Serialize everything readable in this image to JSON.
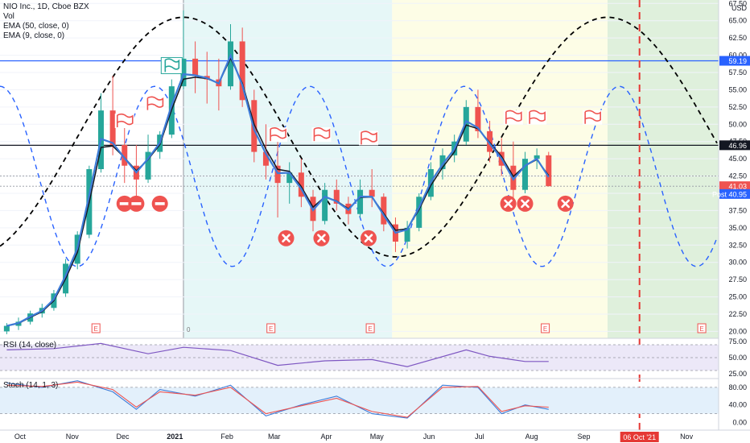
{
  "legend": {
    "symbol_line": "NIO Inc., 1D, Cboe BZX",
    "vol_line": "Vol",
    "ema50_line": "EMA (50, close, 0)",
    "ema9_line": "EMA (9, close, 0)",
    "rsi_line": "RSI (14, close)",
    "stoch_line": "Stoch (14, 1, 3)"
  },
  "currency": "USD",
  "colors": {
    "up": "#26a69a",
    "down": "#ef5350",
    "ema9": "#3d7bd8",
    "ema50": "#131722",
    "cycle_long": "#000000",
    "cycle_short": "#2962ff",
    "zone_blue": "#e6f7f7",
    "zone_yellow": "#fdfde6",
    "zone_green": "#dff0dc",
    "event_line": "#e53935",
    "rsi_band": "#ece8f8",
    "stoch_band": "#e3f0fb"
  },
  "price_axis": {
    "ticks": [
      "67.50",
      "65.00",
      "62.50",
      "60.00",
      "57.50",
      "55.00",
      "52.50",
      "50.00",
      "47.50",
      "45.00",
      "42.50",
      "40.00",
      "37.50",
      "35.00",
      "32.50",
      "30.00",
      "27.50",
      "25.00",
      "22.50",
      "20.00"
    ],
    "labels": [
      {
        "text": "59.19",
        "price": 59.19,
        "color": "#2962ff"
      },
      {
        "text": "46.96",
        "price": 46.96,
        "color": "#131722"
      },
      {
        "text": "41.03",
        "price": 41.03,
        "color": "#ef5350"
      },
      {
        "text": "Post 40.95",
        "price": 40.95,
        "color": "#2962ff"
      }
    ]
  },
  "rsi_axis": {
    "ticks": [
      "75.00",
      "50.00",
      "25.00"
    ]
  },
  "stoch_axis": {
    "ticks": [
      "80.00",
      "40.00",
      "0.00"
    ]
  },
  "time_axis": {
    "labels": [
      "Oct",
      "Nov",
      "Dec",
      "2021",
      "Feb",
      "Mar",
      "Apr",
      "May",
      "Jun",
      "Jul",
      "Aug",
      "Sep",
      "Oct",
      "Nov"
    ],
    "event_label": "06 Oct '21"
  },
  "chart_data": [
    {
      "type": "candlestick",
      "title": "NIO Inc., 1D, Cboe BZX",
      "ylabel": "USD",
      "ylim": [
        19,
        68
      ],
      "x_range": [
        "2020-09-21",
        "2021-11-22"
      ],
      "horizontal_levels": [
        59.19,
        46.96,
        42.5,
        41.03
      ],
      "last_price": 41.03,
      "post_market_price": 40.95,
      "ema_periods": [
        9,
        50
      ],
      "ohlc": [
        [
          "2020-09-25",
          20.0,
          21.2,
          19.6,
          20.8
        ],
        [
          "2020-10-02",
          20.8,
          22.0,
          20.2,
          21.4
        ],
        [
          "2020-10-09",
          21.4,
          23.0,
          21.0,
          22.6
        ],
        [
          "2020-10-16",
          22.6,
          24.0,
          22.0,
          23.4
        ],
        [
          "2020-10-23",
          23.4,
          26.0,
          23.0,
          25.5
        ],
        [
          "2020-10-30",
          25.5,
          30.5,
          25.0,
          29.8
        ],
        [
          "2020-11-06",
          29.8,
          34.5,
          29.0,
          34.0
        ],
        [
          "2020-11-13",
          34.0,
          44.0,
          33.5,
          43.5
        ],
        [
          "2020-11-20",
          43.5,
          54.5,
          43.0,
          52.0
        ],
        [
          "2020-11-27",
          52.0,
          57.0,
          45.5,
          47.0
        ],
        [
          "2020-12-04",
          47.0,
          51.0,
          41.5,
          44.0
        ],
        [
          "2020-12-11",
          44.0,
          47.0,
          39.5,
          42.0
        ],
        [
          "2020-12-18",
          42.0,
          48.5,
          41.5,
          46.0
        ],
        [
          "2020-12-25",
          46.0,
          49.0,
          45.0,
          48.5
        ],
        [
          "2021-01-01",
          48.5,
          56.5,
          48.0,
          55.5
        ],
        [
          "2021-01-08",
          55.5,
          66.5,
          55.0,
          59.5
        ],
        [
          "2021-01-15",
          59.5,
          62.0,
          54.5,
          57.0
        ],
        [
          "2021-01-22",
          57.0,
          60.5,
          53.0,
          56.5
        ],
        [
          "2021-01-29",
          56.5,
          59.5,
          52.0,
          55.5
        ],
        [
          "2021-02-05",
          55.5,
          64.5,
          55.0,
          62.0
        ],
        [
          "2021-02-12",
          62.0,
          64.0,
          52.5,
          53.5
        ],
        [
          "2021-02-19",
          53.5,
          55.0,
          44.5,
          46.0
        ],
        [
          "2021-02-26",
          46.0,
          50.0,
          42.0,
          44.0
        ],
        [
          "2021-03-05",
          44.0,
          49.5,
          36.5,
          41.5
        ],
        [
          "2021-03-12",
          41.5,
          44.5,
          38.5,
          43.0
        ],
        [
          "2021-03-19",
          43.0,
          45.0,
          38.0,
          39.5
        ],
        [
          "2021-03-26",
          39.5,
          40.5,
          34.5,
          36.0
        ],
        [
          "2021-04-02",
          36.0,
          41.5,
          35.5,
          40.5
        ],
        [
          "2021-04-09",
          40.5,
          42.0,
          37.5,
          38.5
        ],
        [
          "2021-04-16",
          38.5,
          39.5,
          35.5,
          37.0
        ],
        [
          "2021-04-23",
          37.0,
          42.0,
          36.5,
          40.5
        ],
        [
          "2021-04-30",
          40.5,
          43.5,
          38.0,
          39.5
        ],
        [
          "2021-05-07",
          39.5,
          40.0,
          34.5,
          35.5
        ],
        [
          "2021-05-14",
          35.5,
          36.5,
          31.5,
          33.0
        ],
        [
          "2021-05-21",
          33.0,
          36.0,
          32.0,
          35.0
        ],
        [
          "2021-05-28",
          35.0,
          40.0,
          34.5,
          39.5
        ],
        [
          "2021-06-04",
          39.5,
          44.5,
          39.0,
          43.5
        ],
        [
          "2021-06-11",
          43.5,
          46.5,
          42.0,
          45.5
        ],
        [
          "2021-06-18",
          45.5,
          48.5,
          44.5,
          47.5
        ],
        [
          "2021-06-25",
          47.5,
          53.5,
          47.0,
          52.5
        ],
        [
          "2021-07-02",
          52.5,
          55.0,
          48.0,
          49.0
        ],
        [
          "2021-07-09",
          49.0,
          50.5,
          44.5,
          46.0
        ],
        [
          "2021-07-16",
          46.0,
          48.0,
          42.5,
          44.0
        ],
        [
          "2021-07-23",
          44.0,
          47.5,
          39.0,
          40.5
        ],
        [
          "2021-07-30",
          40.5,
          46.0,
          40.0,
          45.0
        ],
        [
          "2021-08-06",
          45.0,
          46.5,
          43.5,
          45.5
        ],
        [
          "2021-08-13",
          45.5,
          46.0,
          41.0,
          41.03
        ]
      ],
      "cycle_long": {
        "amplitude_range": [
          30.8,
          65.5
        ],
        "peaks": [
          "2021-01-08",
          "2021-09-17"
        ],
        "troughs": [
          "2020-09-21",
          "2021-05-12"
        ]
      },
      "cycle_short": {
        "amplitude_range": [
          29.4,
          55.5
        ],
        "peaks": [
          "2020-09-21",
          "2020-12-22",
          "2021-03-31",
          "2021-07-02",
          "2021-10-06"
        ],
        "troughs": [
          "2020-11-05",
          "2021-02-14",
          "2021-05-14",
          "2021-08-20",
          "2021-11-22"
        ]
      },
      "zones": [
        {
          "name": "blue",
          "from": "2021-01-08",
          "to": "2021-05-12"
        },
        {
          "name": "yellow",
          "from": "2021-05-12",
          "to": "2021-09-17"
        },
        {
          "name": "green",
          "from": "2021-09-17",
          "to": "2021-11-22"
        }
      ],
      "event_date": "2021-10-06",
      "markers": {
        "flags_red": [
          [
            "2020-12-04",
            50.5
          ],
          [
            "2020-12-22",
            53.0
          ],
          [
            "2021-03-05",
            48.5
          ],
          [
            "2021-03-31",
            48.5
          ],
          [
            "2021-04-28",
            48.0
          ],
          [
            "2021-07-23",
            51.0
          ],
          [
            "2021-08-06",
            51.0
          ],
          [
            "2021-09-08",
            51.0
          ]
        ],
        "flags_green": [
          [
            "2021-01-01",
            58.5
          ]
        ],
        "minus_circles": [
          [
            "2020-12-04",
            38.5
          ],
          [
            "2020-12-11",
            38.5
          ],
          [
            "2020-12-25",
            38.5
          ]
        ],
        "x_circles": [
          [
            "2021-03-10",
            33.5
          ],
          [
            "2021-03-31",
            33.5
          ],
          [
            "2021-04-28",
            33.5
          ],
          [
            "2021-07-20",
            38.5
          ],
          [
            "2021-07-30",
            38.5
          ],
          [
            "2021-08-23",
            38.5
          ]
        ]
      },
      "earnings_marks": [
        "2020-11-17",
        "2021-03-01",
        "2021-04-29",
        "2021-08-11",
        "2021-11-12"
      ],
      "dividend_marks": [
        "2021-01-11"
      ]
    },
    {
      "type": "line",
      "name": "RSI (14, close)",
      "ylim": [
        20,
        80
      ],
      "bands": [
        30,
        70
      ],
      "midline": 50,
      "x": [
        "2020-09-25",
        "2020-10-23",
        "2020-11-20",
        "2020-12-18",
        "2021-01-08",
        "2021-02-05",
        "2021-03-05",
        "2021-04-02",
        "2021-04-30",
        "2021-05-21",
        "2021-06-25",
        "2021-07-09",
        "2021-07-30",
        "2021-08-13"
      ],
      "values": [
        62,
        64,
        72,
        56,
        66,
        61,
        38,
        45,
        47,
        36,
        62,
        52,
        44,
        44
      ]
    },
    {
      "type": "line",
      "name": "Stoch (14, 1, 3)",
      "ylim": [
        -10,
        100
      ],
      "bands": [
        20,
        80
      ],
      "x": [
        "2020-09-25",
        "2020-10-16",
        "2020-11-06",
        "2020-11-27",
        "2020-12-11",
        "2020-12-25",
        "2021-01-15",
        "2021-02-05",
        "2021-02-26",
        "2021-03-19",
        "2021-04-09",
        "2021-04-30",
        "2021-05-21",
        "2021-06-11",
        "2021-07-02",
        "2021-07-16",
        "2021-07-30",
        "2021-08-13"
      ],
      "series": [
        {
          "values": [
            90,
            80,
            95,
            70,
            30,
            75,
            60,
            85,
            15,
            40,
            60,
            20,
            10,
            85,
            80,
            20,
            40,
            30
          ]
        },
        {
          "values": [
            85,
            82,
            92,
            75,
            35,
            70,
            62,
            80,
            20,
            38,
            55,
            25,
            12,
            80,
            82,
            25,
            38,
            35
          ]
        }
      ]
    }
  ]
}
